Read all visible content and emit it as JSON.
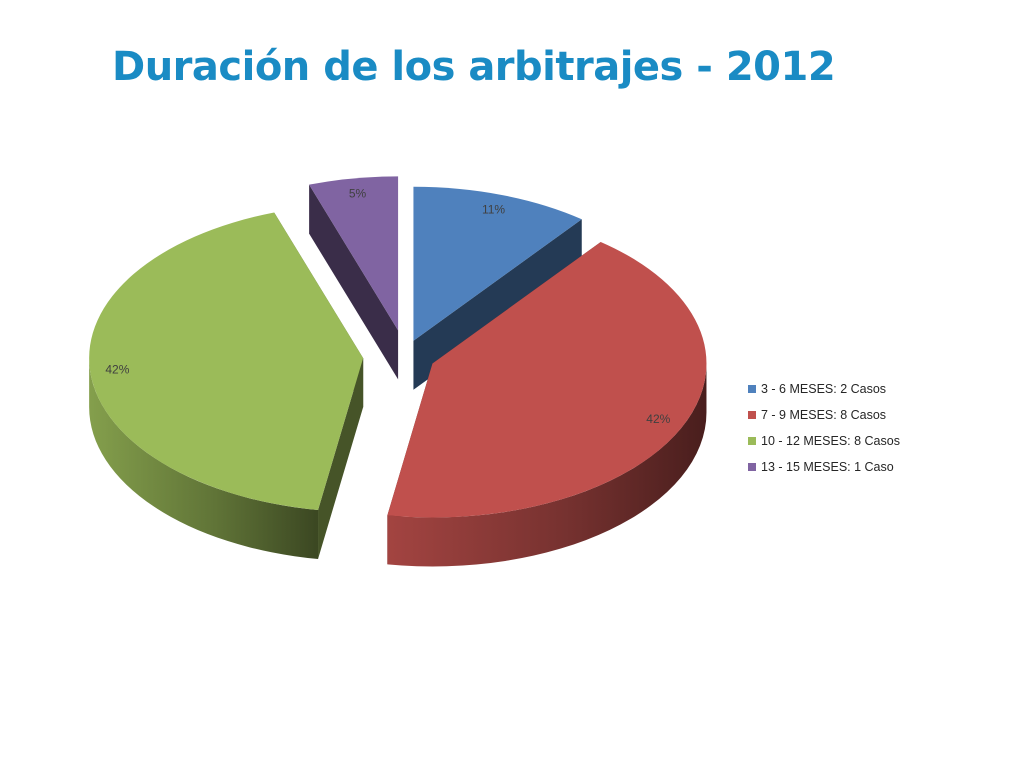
{
  "slide": {
    "title": "Duración de los arbitrajes - 2012"
  },
  "chart_data": {
    "type": "pie",
    "title": "Duración de los arbitrajes - 2012",
    "style": "3d-exploded",
    "legend_position": "right",
    "slices": [
      {
        "label": "3 - 6 MESES: 2 Casos",
        "value": 2,
        "percent_label": "11%",
        "color": "#4f81bd"
      },
      {
        "label": "7 - 9 MESES: 8 Casos",
        "value": 8,
        "percent_label": "42%",
        "color": "#c0504d"
      },
      {
        "label": "10 - 12 MESES: 8 Casos",
        "value": 8,
        "percent_label": "42%",
        "color": "#9bbb59"
      },
      {
        "label": "13 - 15 MESES: 1 Caso",
        "value": 1,
        "percent_label": "5%",
        "color": "#8064a2"
      }
    ]
  }
}
